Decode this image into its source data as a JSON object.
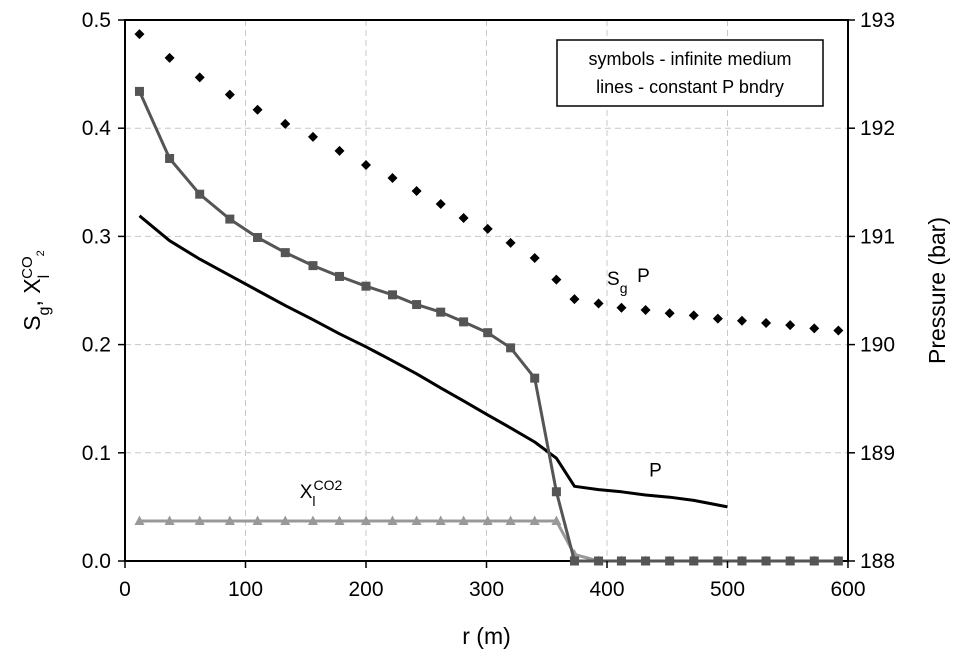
{
  "chart_data": {
    "type": "line",
    "xlabel": "r (m)",
    "ylabel_left": {
      "main": "S",
      "sub1": "g",
      "sep": ", X",
      "sub2": "l",
      "sup": "CO",
      "supsub": "2"
    },
    "ylabel_right": "Pressure (bar)",
    "xlim": [
      0,
      600
    ],
    "ylim_left": [
      0,
      0.5
    ],
    "ylim_right": [
      188,
      193
    ],
    "x_ticks": [
      "0",
      "100",
      "200",
      "300",
      "400",
      "500",
      "600"
    ],
    "y_left_ticks": [
      "0.0",
      "0.1",
      "0.2",
      "0.3",
      "0.4",
      "0.5"
    ],
    "y_right_ticks": [
      "188",
      "189",
      "190",
      "191",
      "192",
      "193"
    ],
    "grid": true,
    "legend": {
      "position": "top-right",
      "lines": [
        "symbols - infinite medium",
        "lines - constant P bndry"
      ]
    },
    "annotations": [
      {
        "id": "sg",
        "main": "S",
        "sub": "g",
        "x": 400,
        "y": 0.255
      },
      {
        "id": "p_sym",
        "main": "P",
        "x": 425,
        "y": 0.258
      },
      {
        "id": "p_line",
        "main": "P",
        "x": 435,
        "y": 0.078
      },
      {
        "id": "xl",
        "main": "X",
        "sub": "l",
        "sup": "CO2",
        "x": 145,
        "y": 0.058
      }
    ],
    "colors": {
      "sg_series": "#555555",
      "xl_series": "#999999",
      "p_line": "#000000",
      "p_symbols": "#000000",
      "grid": "#c8c8c8"
    },
    "series": [
      {
        "id": "sg",
        "axis": "left",
        "style": "line-square",
        "x": [
          12,
          37,
          62,
          87,
          110,
          133,
          156,
          178,
          200,
          222,
          242,
          262,
          281,
          301,
          320,
          340,
          358,
          373,
          393,
          412,
          432,
          452,
          472,
          492,
          512,
          532,
          552,
          572,
          592
        ],
        "y": [
          0.434,
          0.372,
          0.339,
          0.316,
          0.299,
          0.285,
          0.273,
          0.263,
          0.254,
          0.246,
          0.237,
          0.23,
          0.221,
          0.211,
          0.197,
          0.169,
          0.064,
          0.0,
          0.0,
          0.0,
          0.0,
          0.0,
          0.0,
          0.0,
          0.0,
          0.0,
          0.0,
          0.0,
          0.0
        ]
      },
      {
        "id": "xl",
        "axis": "left",
        "style": "line-triangle",
        "x": [
          12,
          37,
          62,
          87,
          110,
          133,
          156,
          178,
          200,
          222,
          242,
          262,
          281,
          301,
          320,
          340,
          358,
          373,
          393,
          412,
          432,
          452,
          472,
          492,
          512,
          532,
          552,
          572,
          592
        ],
        "y": [
          0.037,
          0.037,
          0.037,
          0.037,
          0.037,
          0.037,
          0.037,
          0.037,
          0.037,
          0.037,
          0.037,
          0.037,
          0.037,
          0.037,
          0.037,
          0.037,
          0.037,
          0.006,
          0.0,
          0.0,
          0.0,
          0.0,
          0.0,
          0.0,
          0.0,
          0.0,
          0.0,
          0.0,
          0.0
        ]
      },
      {
        "id": "p_line",
        "axis": "right",
        "style": "line",
        "x": [
          12,
          37,
          62,
          87,
          110,
          133,
          156,
          178,
          200,
          222,
          242,
          262,
          281,
          301,
          320,
          340,
          358,
          373,
          393,
          412,
          432,
          452,
          472,
          500
        ],
        "y": [
          191.19,
          190.96,
          190.79,
          190.64,
          190.5,
          190.36,
          190.23,
          190.1,
          189.98,
          189.85,
          189.73,
          189.6,
          189.48,
          189.35,
          189.23,
          189.1,
          188.95,
          188.69,
          188.66,
          188.64,
          188.61,
          188.59,
          188.56,
          188.5
        ]
      },
      {
        "id": "p_sym",
        "axis": "right",
        "style": "diamond",
        "x": [
          12,
          37,
          62,
          87,
          110,
          133,
          156,
          178,
          200,
          222,
          242,
          262,
          281,
          301,
          320,
          340,
          358,
          373,
          393,
          412,
          432,
          452,
          472,
          492,
          512,
          532,
          552,
          572,
          592
        ],
        "y": [
          192.87,
          192.65,
          192.47,
          192.31,
          192.17,
          192.04,
          191.92,
          191.79,
          191.66,
          191.54,
          191.42,
          191.3,
          191.17,
          191.07,
          190.94,
          190.8,
          190.6,
          190.42,
          190.38,
          190.34,
          190.32,
          190.29,
          190.27,
          190.24,
          190.22,
          190.2,
          190.18,
          190.15,
          190.13
        ]
      }
    ]
  }
}
